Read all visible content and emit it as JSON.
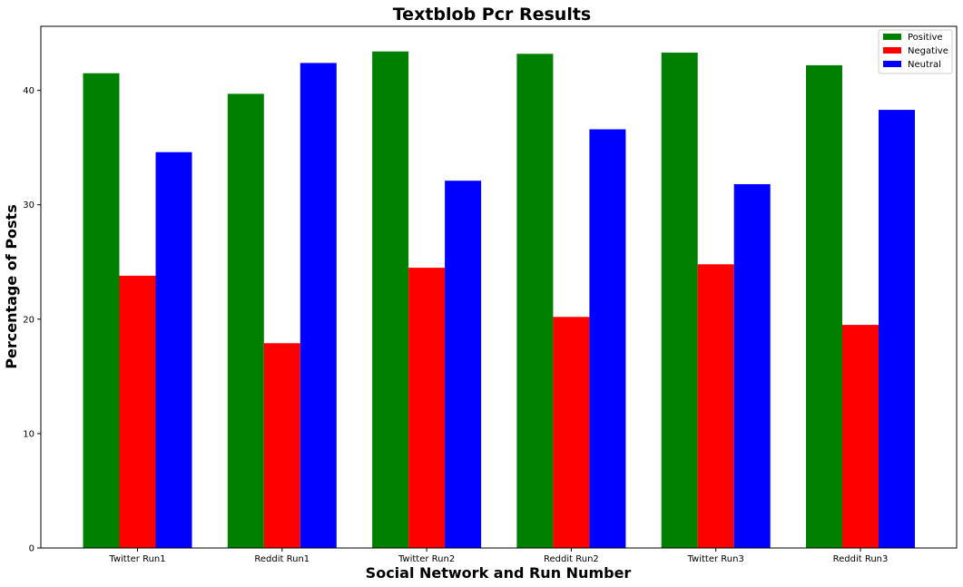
{
  "chart_data": {
    "type": "bar",
    "title": "Textblob Pcr Results",
    "xlabel": "Social Network and Run Number",
    "ylabel": "Percentage of Posts",
    "categories": [
      "Twitter Run1",
      "Reddit Run1",
      "Twitter Run2",
      "Reddit Run2",
      "Twitter Run3",
      "Reddit Run3"
    ],
    "series": [
      {
        "name": "Positive",
        "color": "#008000",
        "values": [
          41.5,
          39.7,
          43.4,
          43.2,
          43.3,
          42.2
        ]
      },
      {
        "name": "Negative",
        "color": "#ff0000",
        "values": [
          23.8,
          17.9,
          24.5,
          20.2,
          24.8,
          19.5
        ]
      },
      {
        "name": "Neutral",
        "color": "#0000ff",
        "values": [
          34.6,
          42.4,
          32.1,
          36.6,
          31.8,
          38.3
        ]
      }
    ],
    "yticks": [
      0,
      10,
      20,
      30,
      40
    ],
    "ylim": [
      0,
      45.6
    ],
    "grid": false,
    "legend_position": "top-right"
  }
}
